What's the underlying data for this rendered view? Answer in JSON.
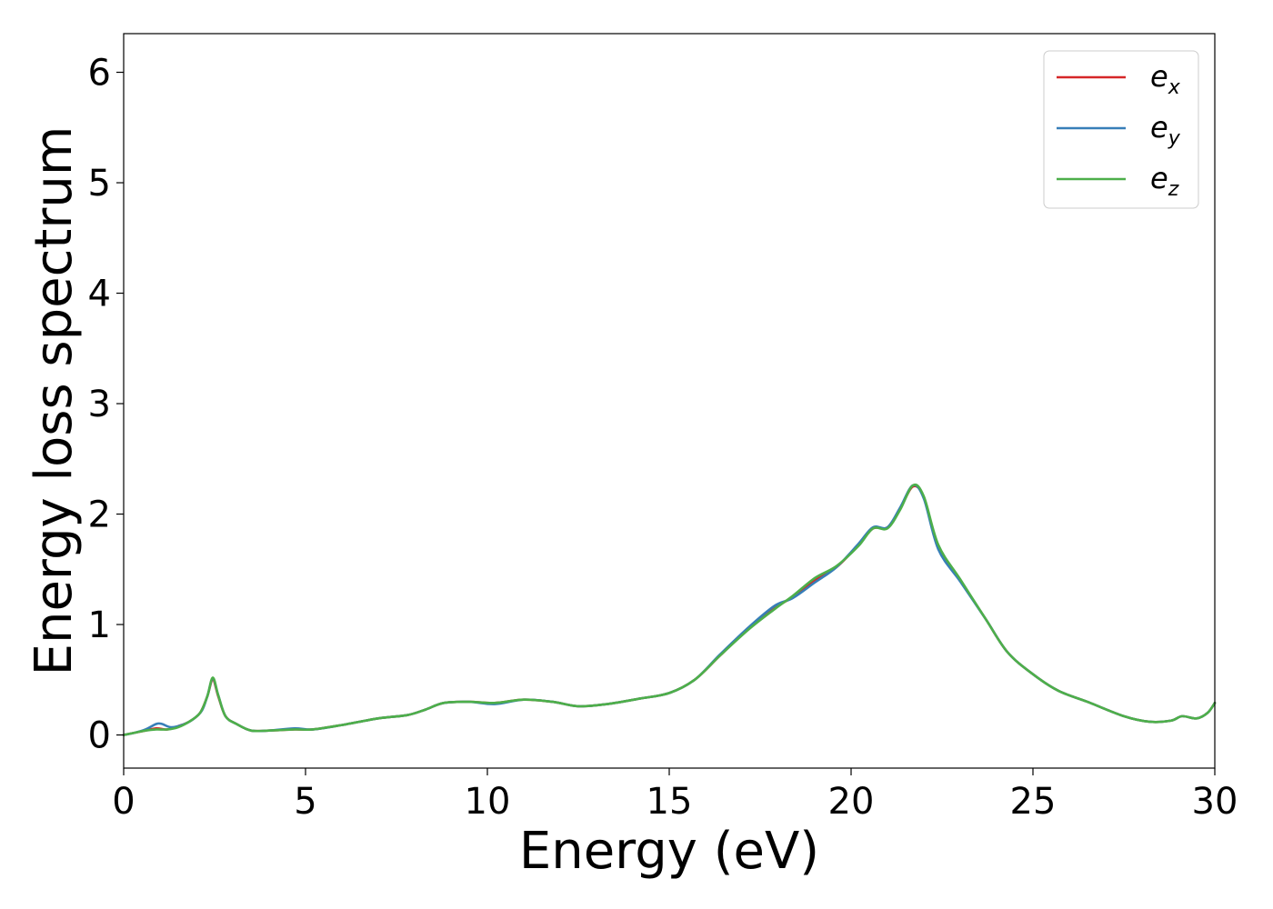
{
  "chart_data": {
    "type": "line",
    "xlabel": "Energy (eV)",
    "ylabel": "Energy loss spectrum",
    "xlim": [
      0,
      30
    ],
    "ylim": [
      -0.3,
      6.35
    ],
    "xticks": [
      "0",
      "5",
      "10",
      "15",
      "20",
      "25",
      "30"
    ],
    "yticks": [
      "0",
      "1",
      "2",
      "3",
      "4",
      "5",
      "6"
    ],
    "grid": false,
    "legend": {
      "placement": "top-right",
      "entries": [
        {
          "base": "e",
          "sub": "x"
        },
        {
          "base": "e",
          "sub": "y"
        },
        {
          "base": "e",
          "sub": "z"
        }
      ]
    },
    "series": [
      {
        "name": "e_x",
        "color": "#d62728",
        "points": [
          [
            0,
            0.0
          ],
          [
            0.3,
            0.02
          ],
          [
            0.6,
            0.04
          ],
          [
            0.9,
            0.06
          ],
          [
            1.2,
            0.05
          ],
          [
            1.5,
            0.08
          ],
          [
            1.8,
            0.12
          ],
          [
            2.1,
            0.2
          ],
          [
            2.3,
            0.35
          ],
          [
            2.45,
            0.5
          ],
          [
            2.6,
            0.35
          ],
          [
            2.8,
            0.17
          ],
          [
            3.1,
            0.1
          ],
          [
            3.5,
            0.04
          ],
          [
            4.0,
            0.04
          ],
          [
            4.7,
            0.05
          ],
          [
            5.2,
            0.05
          ],
          [
            6.0,
            0.09
          ],
          [
            7.0,
            0.15
          ],
          [
            7.8,
            0.18
          ],
          [
            8.3,
            0.23
          ],
          [
            8.8,
            0.29
          ],
          [
            9.5,
            0.3
          ],
          [
            10.2,
            0.29
          ],
          [
            11.0,
            0.32
          ],
          [
            11.8,
            0.3
          ],
          [
            12.5,
            0.26
          ],
          [
            13.3,
            0.28
          ],
          [
            14.2,
            0.33
          ],
          [
            15.0,
            0.38
          ],
          [
            15.7,
            0.5
          ],
          [
            16.4,
            0.72
          ],
          [
            17.2,
            0.97
          ],
          [
            17.9,
            1.15
          ],
          [
            18.4,
            1.25
          ],
          [
            19.0,
            1.4
          ],
          [
            19.6,
            1.52
          ],
          [
            20.2,
            1.72
          ],
          [
            20.6,
            1.87
          ],
          [
            21.0,
            1.88
          ],
          [
            21.35,
            2.05
          ],
          [
            21.7,
            2.25
          ],
          [
            22.0,
            2.15
          ],
          [
            22.4,
            1.7
          ],
          [
            23.0,
            1.4
          ],
          [
            23.7,
            1.05
          ],
          [
            24.3,
            0.75
          ],
          [
            25.0,
            0.55
          ],
          [
            25.7,
            0.4
          ],
          [
            26.5,
            0.3
          ],
          [
            27.5,
            0.17
          ],
          [
            28.2,
            0.12
          ],
          [
            28.8,
            0.13
          ],
          [
            29.1,
            0.17
          ],
          [
            29.5,
            0.15
          ],
          [
            29.8,
            0.2
          ],
          [
            30.0,
            0.29
          ]
        ]
      },
      {
        "name": "e_y",
        "color": "#377eb8",
        "points": [
          [
            0,
            0.0
          ],
          [
            0.3,
            0.02
          ],
          [
            0.6,
            0.05
          ],
          [
            0.9,
            0.1
          ],
          [
            1.05,
            0.1
          ],
          [
            1.3,
            0.07
          ],
          [
            1.6,
            0.09
          ],
          [
            1.9,
            0.14
          ],
          [
            2.15,
            0.22
          ],
          [
            2.3,
            0.35
          ],
          [
            2.45,
            0.51
          ],
          [
            2.6,
            0.36
          ],
          [
            2.8,
            0.17
          ],
          [
            3.1,
            0.1
          ],
          [
            3.5,
            0.04
          ],
          [
            4.0,
            0.04
          ],
          [
            4.7,
            0.06
          ],
          [
            5.2,
            0.05
          ],
          [
            6.0,
            0.09
          ],
          [
            7.0,
            0.15
          ],
          [
            7.8,
            0.18
          ],
          [
            8.3,
            0.23
          ],
          [
            8.8,
            0.29
          ],
          [
            9.5,
            0.3
          ],
          [
            10.2,
            0.28
          ],
          [
            11.0,
            0.32
          ],
          [
            11.8,
            0.3
          ],
          [
            12.5,
            0.26
          ],
          [
            13.3,
            0.28
          ],
          [
            14.2,
            0.33
          ],
          [
            15.0,
            0.38
          ],
          [
            15.7,
            0.5
          ],
          [
            16.4,
            0.73
          ],
          [
            17.2,
            0.98
          ],
          [
            17.9,
            1.17
          ],
          [
            18.4,
            1.24
          ],
          [
            19.0,
            1.38
          ],
          [
            19.6,
            1.52
          ],
          [
            20.2,
            1.73
          ],
          [
            20.6,
            1.88
          ],
          [
            21.0,
            1.88
          ],
          [
            21.35,
            2.06
          ],
          [
            21.7,
            2.26
          ],
          [
            22.0,
            2.14
          ],
          [
            22.4,
            1.68
          ],
          [
            23.0,
            1.39
          ],
          [
            23.7,
            1.05
          ],
          [
            24.3,
            0.75
          ],
          [
            25.0,
            0.55
          ],
          [
            25.7,
            0.4
          ],
          [
            26.5,
            0.3
          ],
          [
            27.5,
            0.17
          ],
          [
            28.2,
            0.12
          ],
          [
            28.8,
            0.13
          ],
          [
            29.1,
            0.17
          ],
          [
            29.5,
            0.15
          ],
          [
            29.8,
            0.2
          ],
          [
            30.0,
            0.29
          ]
        ]
      },
      {
        "name": "e_z",
        "color": "#4daf4a",
        "points": [
          [
            0,
            0.0
          ],
          [
            0.3,
            0.02
          ],
          [
            0.6,
            0.04
          ],
          [
            0.9,
            0.05
          ],
          [
            1.2,
            0.05
          ],
          [
            1.5,
            0.07
          ],
          [
            1.8,
            0.12
          ],
          [
            2.1,
            0.2
          ],
          [
            2.3,
            0.35
          ],
          [
            2.45,
            0.52
          ],
          [
            2.6,
            0.36
          ],
          [
            2.8,
            0.17
          ],
          [
            3.1,
            0.1
          ],
          [
            3.5,
            0.04
          ],
          [
            4.0,
            0.04
          ],
          [
            4.7,
            0.05
          ],
          [
            5.2,
            0.05
          ],
          [
            6.0,
            0.09
          ],
          [
            7.0,
            0.15
          ],
          [
            7.8,
            0.18
          ],
          [
            8.3,
            0.23
          ],
          [
            8.8,
            0.29
          ],
          [
            9.5,
            0.3
          ],
          [
            10.2,
            0.29
          ],
          [
            11.0,
            0.32
          ],
          [
            11.8,
            0.3
          ],
          [
            12.5,
            0.26
          ],
          [
            13.3,
            0.28
          ],
          [
            14.2,
            0.33
          ],
          [
            15.0,
            0.38
          ],
          [
            15.7,
            0.5
          ],
          [
            16.4,
            0.72
          ],
          [
            17.2,
            0.96
          ],
          [
            17.9,
            1.14
          ],
          [
            18.4,
            1.26
          ],
          [
            19.0,
            1.42
          ],
          [
            19.6,
            1.53
          ],
          [
            20.2,
            1.71
          ],
          [
            20.6,
            1.87
          ],
          [
            21.0,
            1.87
          ],
          [
            21.35,
            2.04
          ],
          [
            21.7,
            2.26
          ],
          [
            22.0,
            2.16
          ],
          [
            22.4,
            1.72
          ],
          [
            23.0,
            1.41
          ],
          [
            23.7,
            1.05
          ],
          [
            24.3,
            0.75
          ],
          [
            25.0,
            0.55
          ],
          [
            25.7,
            0.4
          ],
          [
            26.5,
            0.3
          ],
          [
            27.5,
            0.17
          ],
          [
            28.2,
            0.12
          ],
          [
            28.8,
            0.13
          ],
          [
            29.1,
            0.17
          ],
          [
            29.5,
            0.15
          ],
          [
            29.8,
            0.2
          ],
          [
            30.0,
            0.29
          ]
        ]
      }
    ]
  }
}
